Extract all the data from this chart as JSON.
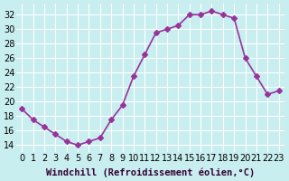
{
  "x": [
    0,
    1,
    2,
    3,
    4,
    5,
    6,
    7,
    8,
    9,
    10,
    11,
    12,
    13,
    14,
    15,
    16,
    17,
    18,
    19,
    20,
    21,
    22,
    23
  ],
  "y": [
    19,
    17.5,
    16.5,
    15.5,
    14.5,
    14,
    14.5,
    15,
    17.5,
    19.5,
    23.5,
    26.5,
    29.5,
    30,
    30.5,
    32,
    32,
    32.5,
    32,
    31.5,
    26,
    23.5,
    21,
    21.5
  ],
  "line_color": "#993399",
  "marker_style": "D",
  "marker_size": 3,
  "background_color": "#c8eef0",
  "grid_color": "#ffffff",
  "xlabel": "Windchill (Refroidissement éolien,°C)",
  "xlim": [
    -0.5,
    23.5
  ],
  "ylim": [
    13,
    33.5
  ],
  "yticks": [
    14,
    16,
    18,
    20,
    22,
    24,
    26,
    28,
    30,
    32
  ],
  "xticks": [
    0,
    1,
    2,
    3,
    4,
    5,
    6,
    7,
    8,
    9,
    10,
    11,
    12,
    13,
    14,
    15,
    16,
    17,
    18,
    19,
    20,
    21,
    22,
    23
  ],
  "tick_label_fontsize": 7,
  "xlabel_fontsize": 7.5,
  "line_width": 1.2
}
